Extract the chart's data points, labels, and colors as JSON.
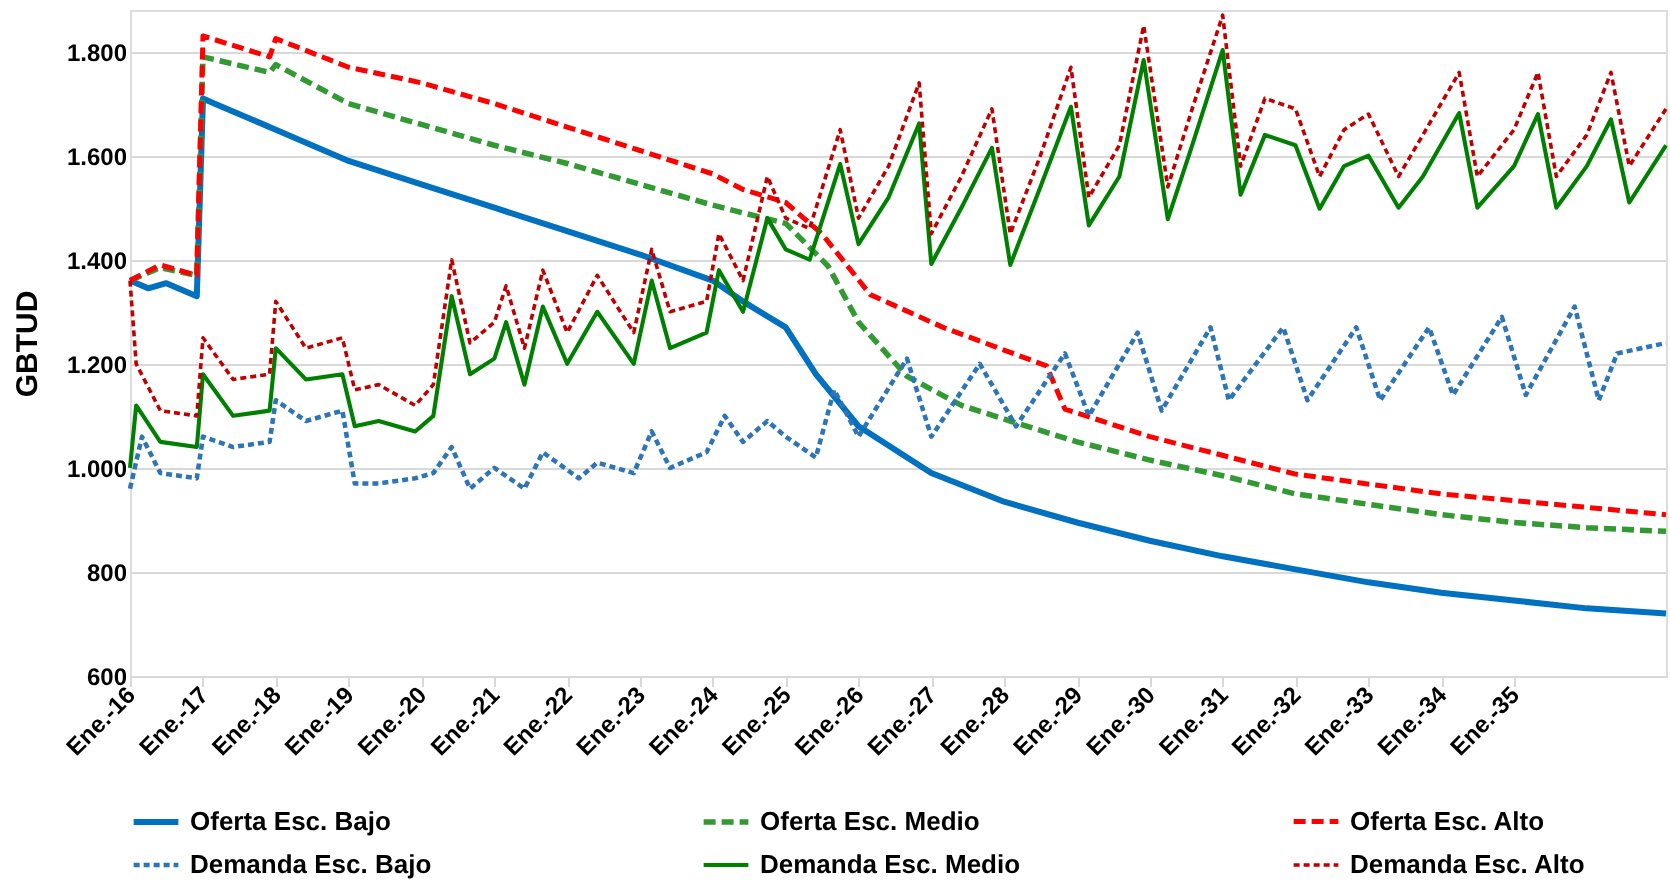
{
  "chart_data": {
    "type": "line",
    "ylabel": "GBTUD",
    "grid": "y",
    "legend": "bottom",
    "xlim": [
      "2016-01",
      "2037-02"
    ],
    "xticks": [
      {
        "value": "2016-01",
        "label": "Ene.-16"
      },
      {
        "value": "2017-01",
        "label": "Ene.-17"
      },
      {
        "value": "2018-01",
        "label": "Ene.-18"
      },
      {
        "value": "2019-01",
        "label": "Ene.-19"
      },
      {
        "value": "2020-01",
        "label": "Ene.-20"
      },
      {
        "value": "2021-01",
        "label": "Ene.-21"
      },
      {
        "value": "2022-01",
        "label": "Ene.-22"
      },
      {
        "value": "2023-01",
        "label": "Ene.-23"
      },
      {
        "value": "2024-01",
        "label": "Ene.-24"
      },
      {
        "value": "2025-01",
        "label": "Ene.-25"
      },
      {
        "value": "2026-01",
        "label": "Ene.-26"
      },
      {
        "value": "2027-01",
        "label": "Ene.-27"
      },
      {
        "value": "2028-01",
        "label": "Ene.-28"
      },
      {
        "value": "2029-01",
        "label": "Ene.-29"
      },
      {
        "value": "2030-01",
        "label": "Ene.-30"
      },
      {
        "value": "2031-01",
        "label": "Ene.-31"
      },
      {
        "value": "2032-01",
        "label": "Ene.-32"
      },
      {
        "value": "2033-01",
        "label": "Ene.-33"
      },
      {
        "value": "2034-01",
        "label": "Ene.-34"
      },
      {
        "value": "2035-01",
        "label": "Ene.-35"
      }
    ],
    "ylim": [
      600,
      1880
    ],
    "yticks": [
      600,
      800,
      {
        "value": 1000,
        "label": "1.000"
      },
      {
        "value": 1200,
        "label": "1.200"
      },
      {
        "value": 1400,
        "label": "1.400"
      },
      {
        "value": 1600,
        "label": "1.600"
      },
      {
        "value": 1800,
        "label": "1.800"
      }
    ],
    "series": [
      {
        "name": "Oferta Esc. Bajo",
        "color": "#0070c0",
        "line_style": "solid",
        "x": [
          "2016-01",
          "2016-04",
          "2016-07",
          "2016-12",
          "2017-01",
          "2017-03",
          "2018-01",
          "2019-01",
          "2020-01",
          "2021-01",
          "2022-01",
          "2023-01",
          "2024-01",
          "2024-06",
          "2025-01",
          "2025-06",
          "2026-01",
          "2027-01",
          "2028-01",
          "2029-01",
          "2030-01",
          "2031-01",
          "2032-01",
          "2033-01",
          "2034-01",
          "2035-01",
          "2036-01",
          "2037-02"
        ],
        "values": [
          1360,
          1345,
          1355,
          1330,
          1710,
          1700,
          1650,
          1590,
          1545,
          1500,
          1455,
          1410,
          1360,
          1320,
          1270,
          1180,
          1080,
          990,
          935,
          895,
          860,
          830,
          805,
          780,
          760,
          745,
          730,
          720
        ]
      },
      {
        "name": "Oferta Esc. Medio",
        "color": "#339933",
        "line_style": "dashed",
        "x": [
          "2016-01",
          "2016-06",
          "2016-12",
          "2017-01",
          "2017-12",
          "2018-01",
          "2019-01",
          "2020-01",
          "2021-01",
          "2022-01",
          "2023-01",
          "2024-01",
          "2024-06",
          "2025-01",
          "2025-08",
          "2026-01",
          "2026-09",
          "2027-06",
          "2028-02",
          "2029-01",
          "2030-01",
          "2031-01",
          "2032-01",
          "2033-01",
          "2034-01",
          "2035-01",
          "2036-01",
          "2037-02"
        ],
        "values": [
          1360,
          1385,
          1370,
          1790,
          1760,
          1775,
          1700,
          1660,
          1620,
          1585,
          1545,
          1505,
          1490,
          1470,
          1388,
          1280,
          1176,
          1120,
          1090,
          1050,
          1015,
          985,
          950,
          930,
          910,
          895,
          885,
          878
        ]
      },
      {
        "name": "Oferta Esc. Alto",
        "color": "#ff0000",
        "line_style": "dashed",
        "x": [
          "2016-01",
          "2016-06",
          "2016-12",
          "2017-01",
          "2017-12",
          "2018-01",
          "2019-01",
          "2020-01",
          "2021-01",
          "2022-01",
          "2023-01",
          "2024-01",
          "2024-06",
          "2025-01",
          "2025-07",
          "2026-03",
          "2027-03",
          "2028-08",
          "2028-11",
          "2030-01",
          "2032-01",
          "2034-01",
          "2037-02"
        ],
        "values": [
          1360,
          1390,
          1370,
          1830,
          1790,
          1825,
          1770,
          1740,
          1700,
          1655,
          1610,
          1565,
          1535,
          1510,
          1450,
          1333,
          1270,
          1196,
          1113,
          1060,
          988,
          950,
          910
        ]
      },
      {
        "name": "Demanda Esc. Bajo",
        "color": "#2e75b6",
        "line_style": "dotted",
        "x": [
          "2016-01",
          "2016-03",
          "2016-06",
          "2016-12",
          "2017-01",
          "2017-06",
          "2017-12",
          "2018-01",
          "2018-06",
          "2018-12",
          "2019-02",
          "2019-06",
          "2019-12",
          "2020-03",
          "2020-06",
          "2020-09",
          "2021-01",
          "2021-06",
          "2021-09",
          "2022-03",
          "2022-06",
          "2022-12",
          "2023-03",
          "2023-06",
          "2023-12",
          "2024-03",
          "2024-06",
          "2024-10",
          "2025-01",
          "2025-06",
          "2025-09",
          "2026-01",
          "2026-09",
          "2027-01",
          "2027-09",
          "2028-03",
          "2028-11",
          "2029-03",
          "2029-11",
          "2030-03",
          "2030-11",
          "2031-02",
          "2031-11",
          "2032-03",
          "2032-11",
          "2033-03",
          "2033-11",
          "2034-03",
          "2034-11",
          "2035-03",
          "2035-11",
          "2036-03",
          "2036-06",
          "2037-02"
        ],
        "values": [
          960,
          1060,
          990,
          980,
          1060,
          1040,
          1050,
          1130,
          1090,
          1110,
          970,
          970,
          980,
          990,
          1040,
          960,
          1000,
          960,
          1030,
          980,
          1010,
          990,
          1070,
          1000,
          1030,
          1100,
          1050,
          1090,
          1060,
          1020,
          1150,
          1060,
          1210,
          1060,
          1200,
          1080,
          1220,
          1100,
          1260,
          1110,
          1270,
          1130,
          1270,
          1130,
          1270,
          1130,
          1270,
          1140,
          1290,
          1140,
          1310,
          1130,
          1220,
          1240
        ]
      },
      {
        "name": "Demanda Esc. Medio",
        "color": "#008000",
        "line_style": "solid",
        "x": [
          "2016-01",
          "2016-02",
          "2016-06",
          "2016-12",
          "2017-01",
          "2017-06",
          "2017-12",
          "2018-01",
          "2018-06",
          "2018-12",
          "2019-02",
          "2019-06",
          "2019-12",
          "2020-03",
          "2020-06",
          "2020-09",
          "2021-01",
          "2021-03",
          "2021-06",
          "2021-09",
          "2022-01",
          "2022-06",
          "2022-12",
          "2023-03",
          "2023-06",
          "2023-12",
          "2024-02",
          "2024-06",
          "2024-10",
          "2025-01",
          "2025-05",
          "2025-10",
          "2026-01",
          "2026-06",
          "2026-11",
          "2027-01",
          "2027-06",
          "2027-11",
          "2028-02",
          "2028-07",
          "2028-12",
          "2029-03",
          "2029-08",
          "2029-12",
          "2030-04",
          "2030-08",
          "2031-01",
          "2031-04",
          "2031-08",
          "2032-01",
          "2032-05",
          "2032-09",
          "2033-01",
          "2033-06",
          "2033-10",
          "2034-04",
          "2034-07",
          "2035-01",
          "2035-05",
          "2035-08",
          "2036-01",
          "2036-05",
          "2036-08",
          "2037-02"
        ],
        "values": [
          1000,
          1120,
          1050,
          1040,
          1180,
          1100,
          1110,
          1230,
          1170,
          1180,
          1080,
          1090,
          1070,
          1100,
          1330,
          1180,
          1210,
          1280,
          1160,
          1310,
          1200,
          1300,
          1200,
          1360,
          1230,
          1260,
          1380,
          1300,
          1480,
          1420,
          1400,
          1584,
          1430,
          1520,
          1662,
          1392,
          1500,
          1615,
          1390,
          1540,
          1694,
          1466,
          1560,
          1784,
          1478,
          1620,
          1803,
          1525,
          1640,
          1620,
          1498,
          1580,
          1600,
          1500,
          1560,
          1682,
          1500,
          1580,
          1680,
          1500,
          1580,
          1670,
          1510,
          1620
        ]
      },
      {
        "name": "Demanda Esc. Alto",
        "color": "#c00000",
        "line_style": "dotted",
        "x": [
          "2016-01",
          "2016-02",
          "2016-06",
          "2016-12",
          "2017-01",
          "2017-06",
          "2017-12",
          "2018-01",
          "2018-06",
          "2018-12",
          "2019-02",
          "2019-06",
          "2019-12",
          "2020-03",
          "2020-06",
          "2020-09",
          "2021-01",
          "2021-03",
          "2021-06",
          "2021-09",
          "2022-01",
          "2022-06",
          "2022-12",
          "2023-03",
          "2023-06",
          "2023-12",
          "2024-02",
          "2024-06",
          "2024-10",
          "2025-01",
          "2025-05",
          "2025-10",
          "2026-01",
          "2026-06",
          "2026-11",
          "2027-01",
          "2027-06",
          "2027-11",
          "2028-02",
          "2028-07",
          "2028-12",
          "2029-03",
          "2029-08",
          "2029-12",
          "2030-04",
          "2030-08",
          "2031-01",
          "2031-04",
          "2031-08",
          "2032-01",
          "2032-05",
          "2032-09",
          "2033-01",
          "2033-06",
          "2033-10",
          "2034-04",
          "2034-07",
          "2035-01",
          "2035-05",
          "2035-08",
          "2036-01",
          "2036-05",
          "2036-08",
          "2037-02"
        ],
        "values": [
          1360,
          1200,
          1110,
          1100,
          1250,
          1170,
          1180,
          1320,
          1230,
          1250,
          1150,
          1160,
          1120,
          1160,
          1400,
          1240,
          1280,
          1350,
          1230,
          1380,
          1260,
          1370,
          1260,
          1420,
          1300,
          1320,
          1450,
          1360,
          1560,
          1480,
          1460,
          1650,
          1480,
          1580,
          1740,
          1450,
          1560,
          1690,
          1450,
          1600,
          1770,
          1520,
          1620,
          1850,
          1540,
          1690,
          1870,
          1580,
          1710,
          1690,
          1560,
          1650,
          1680,
          1560,
          1640,
          1760,
          1560,
          1650,
          1760,
          1560,
          1640,
          1760,
          1580,
          1690
        ]
      }
    ]
  }
}
